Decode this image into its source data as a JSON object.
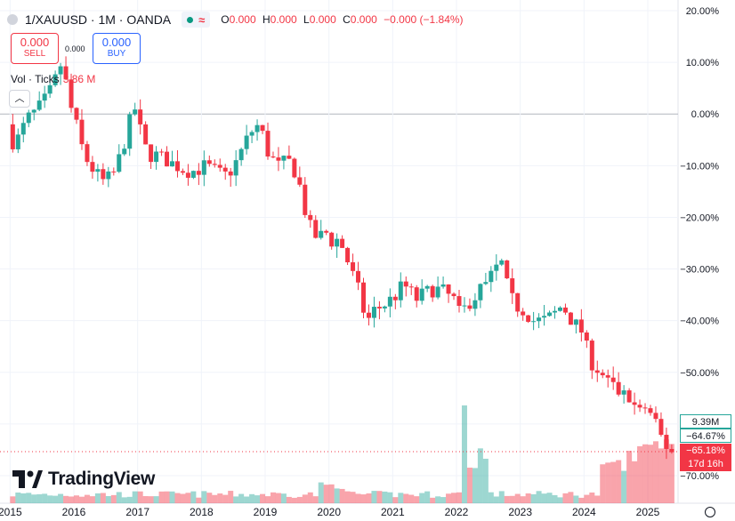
{
  "header": {
    "symbol_info": "1/XAUUSD · 1M · OANDA",
    "ohlc": [
      {
        "key": "O",
        "value": "0.000"
      },
      {
        "key": "H",
        "value": "0.000"
      },
      {
        "key": "L",
        "value": "0.000"
      },
      {
        "key": "C",
        "value": "0.000"
      }
    ],
    "change": "−0.000 (−1.84%)"
  },
  "trade": {
    "sell_price": "0.000",
    "sell_label": "SELL",
    "spread": "0.000",
    "buy_price": "0.000",
    "buy_label": "BUY"
  },
  "volume_label": {
    "label": "Vol · Ticks",
    "value": "3.86 M"
  },
  "branding": "TradingView",
  "right_badges": {
    "volume": "9.39M",
    "pct_prev": "−64.67%",
    "pct_last": "−65.18%",
    "countdown": "17d 16h"
  },
  "colors": {
    "up": "#26a69a",
    "down": "#f23645",
    "grid": "#f0f3fa"
  },
  "chart_data": {
    "type": "candlestick",
    "y_axis_scale": "percent",
    "ylim": [
      -75,
      20
    ],
    "yticks": [
      "20.00%",
      "10.00%",
      "0.00%",
      "−10.00%",
      "−20.00%",
      "−30.00%",
      "−40.00%",
      "−50.00%",
      "−60.00%",
      "−70.00%"
    ],
    "ytick_values": [
      20,
      10,
      0,
      -10,
      -20,
      -30,
      -40,
      -50,
      -60,
      -70
    ],
    "xticks": [
      "2015",
      "2016",
      "2017",
      "2018",
      "2019",
      "2020",
      "2021",
      "2022",
      "2023",
      "2024",
      "2025"
    ],
    "xtick_years": [
      2015,
      2016,
      2017,
      2018,
      2019,
      2020,
      2021,
      2022,
      2023,
      2024,
      2025
    ],
    "x_start_year": 2015.0,
    "x_end_year": 2025.42,
    "close_path_pct": [
      [
        2015.0,
        -2
      ],
      [
        2015.1,
        -6
      ],
      [
        2015.2,
        -4
      ],
      [
        2015.3,
        -1
      ],
      [
        2015.4,
        0
      ],
      [
        2015.55,
        2
      ],
      [
        2015.7,
        5
      ],
      [
        2015.85,
        10
      ],
      [
        2016.0,
        1
      ],
      [
        2016.1,
        -3
      ],
      [
        2016.2,
        -8
      ],
      [
        2016.35,
        -11
      ],
      [
        2016.5,
        -13
      ],
      [
        2016.65,
        -12
      ],
      [
        2016.8,
        -7
      ],
      [
        2016.95,
        0
      ],
      [
        2017.0,
        1
      ],
      [
        2017.1,
        -4
      ],
      [
        2017.2,
        -8
      ],
      [
        2017.35,
        -8
      ],
      [
        2017.5,
        -9
      ],
      [
        2017.65,
        -10
      ],
      [
        2017.8,
        -11
      ],
      [
        2017.95,
        -11
      ],
      [
        2018.1,
        -10
      ],
      [
        2018.25,
        -11
      ],
      [
        2018.4,
        -12
      ],
      [
        2018.5,
        -11
      ],
      [
        2018.6,
        -9
      ],
      [
        2018.75,
        -5
      ],
      [
        2018.9,
        -2
      ],
      [
        2019.0,
        -4
      ],
      [
        2019.1,
        -8
      ],
      [
        2019.25,
        -10
      ],
      [
        2019.4,
        -9
      ],
      [
        2019.55,
        -12
      ],
      [
        2019.65,
        -18
      ],
      [
        2019.75,
        -22
      ],
      [
        2019.85,
        -24
      ],
      [
        2020.0,
        -23
      ],
      [
        2020.1,
        -25
      ],
      [
        2020.2,
        -24
      ],
      [
        2020.35,
        -29
      ],
      [
        2020.5,
        -34
      ],
      [
        2020.55,
        -37
      ],
      [
        2020.65,
        -40
      ],
      [
        2020.75,
        -38
      ],
      [
        2020.9,
        -37
      ],
      [
        2021.0,
        -36
      ],
      [
        2021.1,
        -35
      ],
      [
        2021.2,
        -33
      ],
      [
        2021.3,
        -34
      ],
      [
        2021.4,
        -36
      ],
      [
        2021.5,
        -35
      ],
      [
        2021.65,
        -34
      ],
      [
        2021.8,
        -34
      ],
      [
        2021.9,
        -35
      ],
      [
        2022.0,
        -36
      ],
      [
        2022.1,
        -39
      ],
      [
        2022.2,
        -37
      ],
      [
        2022.35,
        -35
      ],
      [
        2022.5,
        -33
      ],
      [
        2022.65,
        -30
      ],
      [
        2022.75,
        -29
      ],
      [
        2022.85,
        -34
      ],
      [
        2022.95,
        -37
      ],
      [
        2023.1,
        -38
      ],
      [
        2023.25,
        -40
      ],
      [
        2023.4,
        -40
      ],
      [
        2023.55,
        -39
      ],
      [
        2023.7,
        -37
      ],
      [
        2023.85,
        -40
      ],
      [
        2024.0,
        -42
      ],
      [
        2024.15,
        -48
      ],
      [
        2024.3,
        -50
      ],
      [
        2024.45,
        -52
      ],
      [
        2024.6,
        -54
      ],
      [
        2024.75,
        -55
      ],
      [
        2024.85,
        -57
      ],
      [
        2025.0,
        -57
      ],
      [
        2025.1,
        -59
      ],
      [
        2025.2,
        -61
      ],
      [
        2025.3,
        -64
      ],
      [
        2025.4,
        -65
      ]
    ],
    "volume_note": "Volume histogram along the bottom; spike in early 2022 and elevated bars in late 2024-2025."
  }
}
